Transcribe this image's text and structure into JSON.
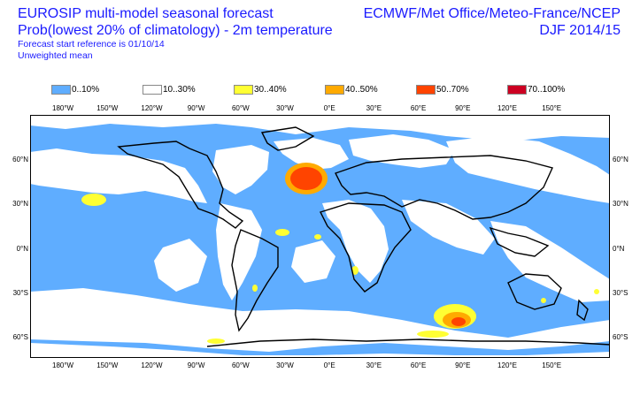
{
  "header": {
    "title_line1": "EUROSIP multi-model seasonal forecast",
    "title_line2": "Prob(lowest 20% of climatology) - 2m temperature",
    "title_line3": "Forecast start reference is 01/10/14",
    "title_line4": "Unweighted mean",
    "producer": "ECMWF/Met Office/Meteo-France/NCEP",
    "period": "DJF 2014/15"
  },
  "legend": [
    {
      "label": "0..10%",
      "color": "#5fadff"
    },
    {
      "label": "10..30%",
      "color": "#ffffff"
    },
    {
      "label": "30..40%",
      "color": "#ffff33"
    },
    {
      "label": "40..50%",
      "color": "#ffaa00"
    },
    {
      "label": "50..70%",
      "color": "#ff4400"
    },
    {
      "label": "70..100%",
      "color": "#cc0022"
    }
  ],
  "axes": {
    "lon_top": [
      "180°W",
      "150°W",
      "120°W",
      "90°W",
      "60°W",
      "30°W",
      "0°E",
      "30°E",
      "60°E",
      "90°E",
      "120°E",
      "150°E"
    ],
    "lon_bottom": [
      "180°W",
      "150°W",
      "120°W",
      "90°W",
      "60°W",
      "30°W",
      "0°E",
      "30°E",
      "60°E",
      "90°E",
      "120°E",
      "150°E"
    ],
    "lat_left": [
      "60°N",
      "30°N",
      "0°N",
      "30°S",
      "60°S"
    ],
    "lat_right": [
      "60°N",
      "30°N",
      "0°N",
      "30°S",
      "60°S"
    ]
  }
}
